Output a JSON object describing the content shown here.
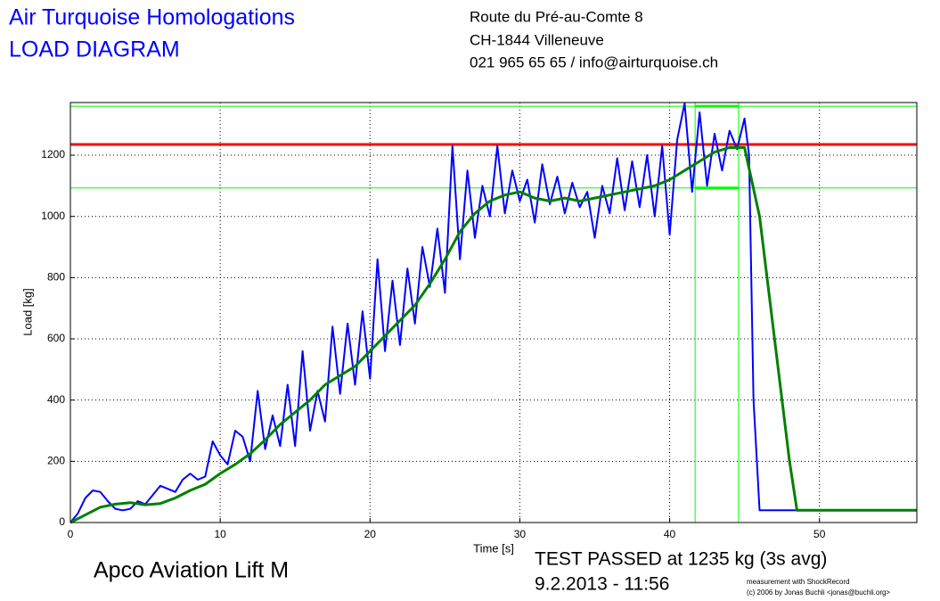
{
  "chart_data": {
    "type": "line",
    "title": "Air Turquoise Homologations",
    "subtitle": "LOAD DIAGRAM",
    "address": [
      "Route du Pré-au-Comte 8",
      "CH-1844 Villeneuve",
      "021 965 65 65 / info@airturquoise.ch"
    ],
    "x_label": "Time [s]",
    "y_label": "Load [kg]",
    "annotations": [
      "Apco Aviation Lift M",
      "TEST PASSED at 1235 kg (3s avg)",
      "9.2.2013 - 11:56",
      "measurement with ShockRecord",
      "(c) 2006 by Jonas Buchli <jonas@buchli.org>"
    ],
    "xlim": [
      0,
      56.5
    ],
    "ylim": [
      0,
      1372
    ],
    "xticks": [
      0,
      10,
      20,
      30,
      40,
      50
    ],
    "yticks": [
      0,
      200,
      400,
      600,
      800,
      1000,
      1200
    ],
    "grid": true,
    "hlines": [
      {
        "y": 1235,
        "color": "#ff0000"
      }
    ],
    "box": {
      "x": [
        41.7,
        44.6
      ],
      "y": [
        1093,
        1360
      ],
      "color": "#00ff00"
    },
    "series": [
      {
        "color": "#0000ff",
        "x": [
          0,
          0.5,
          1,
          1.5,
          2,
          2.5,
          3,
          3.5,
          4,
          4.5,
          5,
          5.5,
          6,
          6.5,
          7,
          7.5,
          8,
          8.5,
          9,
          9.5,
          10,
          10.5,
          11,
          11.5,
          12,
          12.5,
          13,
          13.5,
          14,
          14.5,
          15,
          15.5,
          16,
          16.5,
          17,
          17.5,
          18,
          18.5,
          19,
          19.5,
          20,
          20.5,
          21,
          21.5,
          22,
          22.5,
          23,
          23.5,
          24,
          24.5,
          25,
          25.5,
          26,
          26.5,
          27,
          27.5,
          28,
          28.5,
          29,
          29.5,
          30,
          30.5,
          31,
          31.5,
          32,
          32.5,
          33,
          33.5,
          34,
          34.5,
          35,
          35.5,
          36,
          36.5,
          37,
          37.5,
          38,
          38.5,
          39,
          39.5,
          40,
          40.5,
          41,
          41.5,
          42,
          42.5,
          43,
          43.5,
          44,
          44.5,
          45,
          45.3,
          45.6,
          46,
          50,
          56.5
        ],
        "values": [
          0,
          30,
          80,
          105,
          100,
          70,
          45,
          40,
          45,
          70,
          60,
          90,
          120,
          110,
          100,
          140,
          160,
          140,
          150,
          265,
          220,
          190,
          300,
          280,
          200,
          430,
          240,
          350,
          250,
          450,
          250,
          560,
          300,
          430,
          330,
          640,
          420,
          650,
          450,
          690,
          470,
          860,
          560,
          790,
          580,
          830,
          650,
          900,
          770,
          960,
          750,
          1230,
          860,
          1150,
          930,
          1100,
          1000,
          1230,
          1010,
          1150,
          1050,
          1120,
          980,
          1170,
          1040,
          1130,
          1010,
          1110,
          1030,
          1080,
          930,
          1100,
          1010,
          1190,
          1020,
          1180,
          1030,
          1200,
          1000,
          1230,
          940,
          1250,
          1370,
          1080,
          1340,
          1100,
          1270,
          1150,
          1280,
          1220,
          1320,
          1200,
          400,
          40,
          40,
          40
        ]
      },
      {
        "color": "#008000",
        "x": [
          0,
          1,
          2,
          3,
          4,
          5,
          6,
          7,
          8,
          9,
          10,
          11,
          12,
          13,
          14,
          15,
          16,
          17,
          18,
          19,
          20,
          21,
          22,
          23,
          24,
          25,
          26,
          27,
          28,
          29,
          30,
          31,
          32,
          33,
          34,
          35,
          36,
          37,
          38,
          39,
          40,
          41,
          42,
          43,
          44,
          45,
          46,
          47,
          48,
          48.5,
          50,
          56.5
        ],
        "values": [
          0,
          25,
          50,
          60,
          65,
          58,
          62,
          80,
          105,
          125,
          160,
          190,
          225,
          270,
          320,
          360,
          400,
          450,
          480,
          510,
          560,
          610,
          660,
          710,
          780,
          860,
          950,
          1010,
          1050,
          1070,
          1080,
          1060,
          1050,
          1060,
          1050,
          1060,
          1070,
          1080,
          1090,
          1100,
          1120,
          1150,
          1180,
          1210,
          1225,
          1225,
          1000,
          600,
          200,
          40,
          40,
          40
        ]
      }
    ]
  }
}
